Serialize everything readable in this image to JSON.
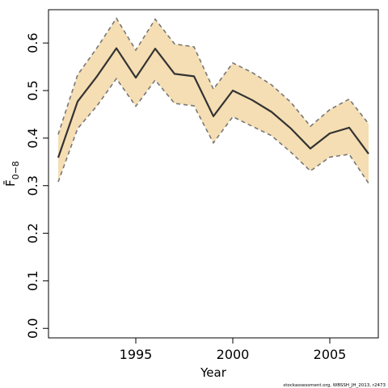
{
  "chart_data": {
    "type": "line",
    "xlabel": "Year",
    "ylabel": "F̄",
    "ylabel_subscript": "0−8",
    "xlim": [
      1990.5,
      2007.5
    ],
    "ylim": [
      -0.02,
      0.67
    ],
    "x_ticks": [
      1995,
      2000,
      2005
    ],
    "x_tick_labels": [
      "1995",
      "2000",
      "2005"
    ],
    "y_ticks": [
      0.0,
      0.1,
      0.2,
      0.3,
      0.4,
      0.5,
      0.6
    ],
    "y_tick_labels": [
      "0.0",
      "0.1",
      "0.2",
      "0.3",
      "0.4",
      "0.5",
      "0.6"
    ],
    "grid": false,
    "band_color": "#f5deb3",
    "line_color": "#333333",
    "bound_color": "#777777",
    "x": [
      1991,
      1992,
      1993,
      1994,
      1995,
      1996,
      1997,
      1998,
      1999,
      2000,
      2001,
      2002,
      2003,
      2004,
      2005,
      2006,
      2007
    ],
    "series": [
      {
        "role": "estimate",
        "values": [
          0.359,
          0.477,
          0.53,
          0.589,
          0.527,
          0.588,
          0.535,
          0.53,
          0.446,
          0.5,
          0.48,
          0.455,
          0.42,
          0.378,
          0.41,
          0.422,
          0.367
        ]
      },
      {
        "role": "upper",
        "values": [
          0.408,
          0.533,
          0.59,
          0.652,
          0.585,
          0.65,
          0.598,
          0.592,
          0.503,
          0.558,
          0.538,
          0.512,
          0.475,
          0.425,
          0.46,
          0.482,
          0.43
        ]
      },
      {
        "role": "lower",
        "values": [
          0.308,
          0.42,
          0.468,
          0.525,
          0.467,
          0.522,
          0.473,
          0.468,
          0.39,
          0.445,
          0.425,
          0.405,
          0.37,
          0.331,
          0.36,
          0.366,
          0.305
        ]
      }
    ],
    "footnote": "stockassessment.org, WBSSH_JH_2013, r2473"
  }
}
